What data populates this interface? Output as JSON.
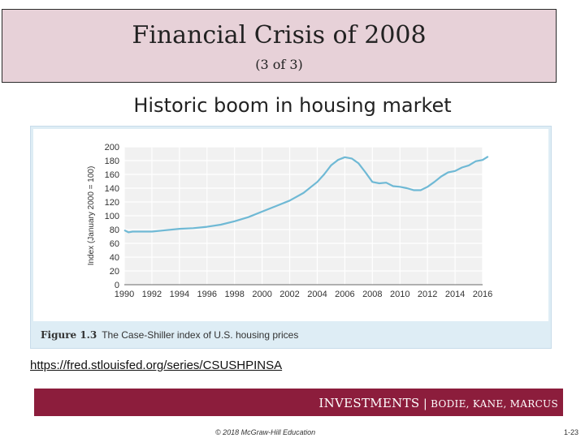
{
  "slide": {
    "title": "Financial Crisis of 2008",
    "part": "(3 of 3)",
    "subtitle": "Historic boom in housing market",
    "link": "https://fred.stlouisfed.org/series/CSUSHPINSA",
    "footer": {
      "book": "INVESTMENTS",
      "separator": "|",
      "authors": "BODIE, KANE, MARCUS"
    },
    "copyright": "© 2018 McGraw-Hill Education",
    "page": "1-23",
    "colors": {
      "title_bg": "#e7d1d8",
      "footer_bg": "#8c1d3c",
      "figure_bg": "#deedf5",
      "line": "#6fb9d5"
    }
  },
  "figure": {
    "number": "Figure 1.3",
    "caption": "The Case-Shiller index of U.S. housing prices"
  },
  "chart_data": {
    "type": "line",
    "ylabel": "Index (January 2000 = 100)",
    "xlabel": "",
    "ylim": [
      0,
      200
    ],
    "xlim": [
      1990,
      2016
    ],
    "yticks": [
      0,
      20,
      40,
      60,
      80,
      100,
      120,
      140,
      160,
      180,
      200
    ],
    "xticks": [
      1990,
      1992,
      1994,
      1996,
      1998,
      2000,
      2002,
      2004,
      2006,
      2008,
      2010,
      2012,
      2014,
      2016
    ],
    "grid": true,
    "series": [
      {
        "x": [
          1990,
          1990.3,
          1990.6,
          1991,
          1992,
          1993,
          1994,
          1995,
          1996,
          1997,
          1998,
          1999,
          2000,
          2001,
          2002,
          2003,
          2004,
          2004.5,
          2005,
          2005.5,
          2006,
          2006.5,
          2007,
          2007.5,
          2008,
          2008.5,
          2009,
          2009.5,
          2010,
          2010.5,
          2011,
          2011.5,
          2012,
          2012.5,
          2013,
          2013.5,
          2014,
          2014.5,
          2015,
          2015.5,
          2016,
          2016.4
        ],
        "y": [
          79,
          76,
          77,
          77,
          77,
          79,
          81,
          82,
          84,
          87,
          92,
          98,
          106,
          114,
          122,
          133,
          149,
          160,
          173,
          181,
          185,
          183,
          176,
          163,
          149,
          147,
          148,
          143,
          142,
          140,
          137,
          137,
          142,
          149,
          157,
          163,
          165,
          170,
          173,
          179,
          181,
          186
        ]
      }
    ]
  }
}
